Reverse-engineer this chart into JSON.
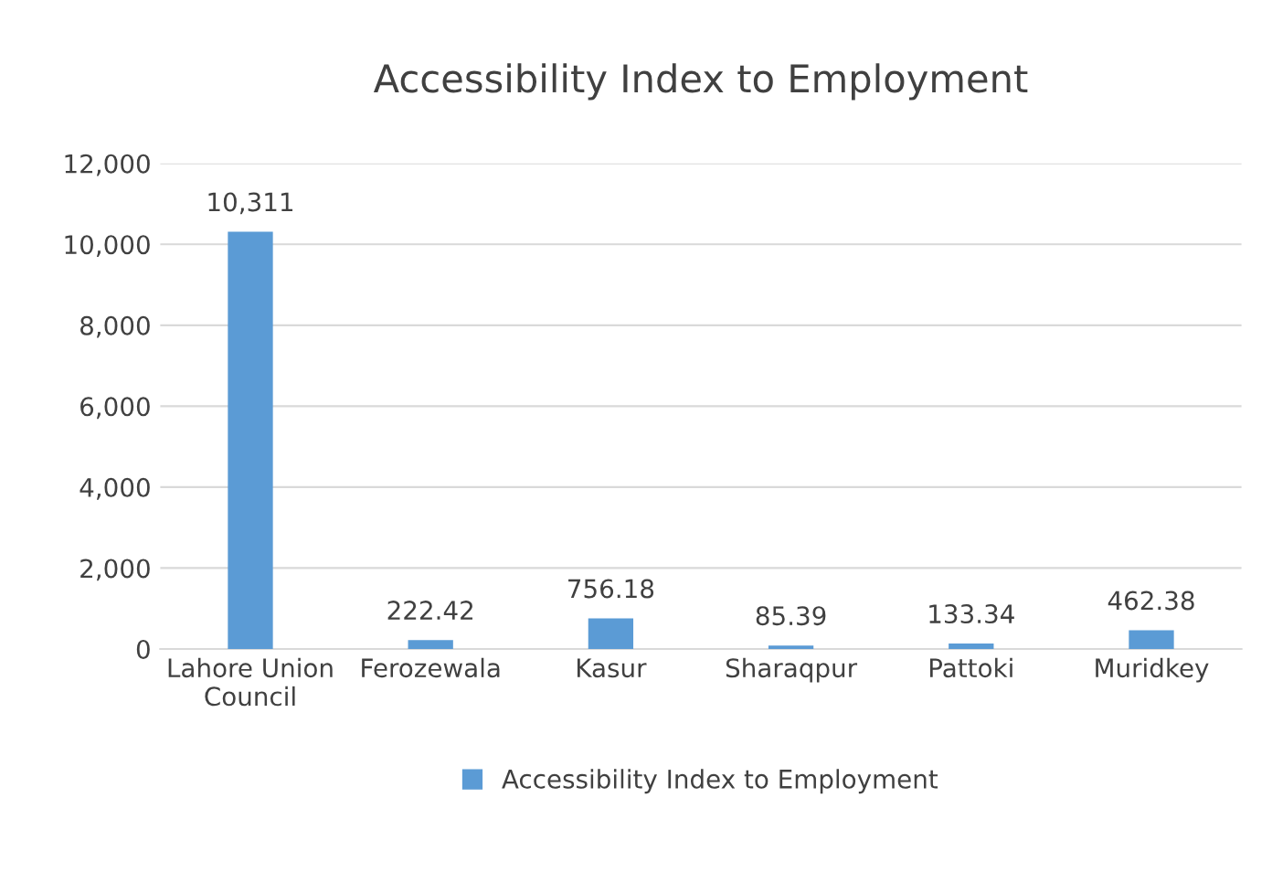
{
  "chart_data": {
    "type": "bar",
    "title": "Accessibility Index to Employment",
    "categories": [
      "Lahore Union\nCouncil",
      "Ferozewala",
      "Kasur",
      "Sharaqpur",
      "Pattoki",
      "Muridkey"
    ],
    "series": [
      {
        "name": "Accessibility Index to Employment",
        "color": "#5b9bd5",
        "values": [
          10311,
          222.42,
          756.18,
          85.39,
          133.34,
          462.38
        ],
        "value_labels": [
          "10,311",
          "222.42",
          "756.18",
          "85.39",
          "133.34",
          "462.38"
        ]
      }
    ],
    "ylim": [
      0,
      12000
    ],
    "yticks": [
      0,
      {
        "value": 2000,
        "label": "2,000"
      },
      {
        "value": 4000,
        "label": "4,000"
      },
      {
        "value": 6000,
        "label": "6,000"
      },
      {
        "value": 8000,
        "label": "8,000"
      },
      {
        "value": 10000,
        "label": "10,000"
      },
      {
        "value": 12000,
        "label": "12,000"
      }
    ],
    "grid": "y",
    "legend": "bottom"
  }
}
